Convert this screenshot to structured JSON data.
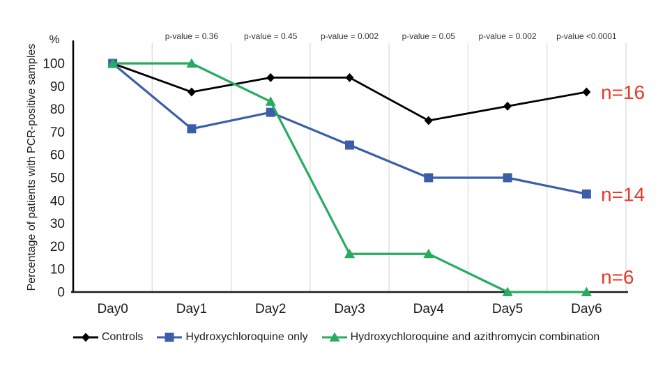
{
  "chart_data": {
    "type": "line",
    "title": "",
    "ylabel": "Percentage of patients with PCR-positive samples",
    "y_unit_label": "%",
    "xlabel": "",
    "categories": [
      "Day0",
      "Day1",
      "Day2",
      "Day3",
      "Day4",
      "Day5",
      "Day6"
    ],
    "ylim": [
      0,
      100
    ],
    "yticks": [
      0,
      10,
      20,
      30,
      40,
      50,
      60,
      70,
      80,
      90,
      100
    ],
    "grid": "vertical-between-categories",
    "legend_position": "bottom",
    "p_value_days": [
      "Day1",
      "Day2",
      "Day3",
      "Day4",
      "Day5",
      "Day6"
    ],
    "p_value_labels": [
      "p-value = 0.36",
      "p-value = 0.45",
      "p-value = 0.002",
      "p-value = 0.05",
      "p-value = 0.002",
      "p-value <0.0001"
    ],
    "series": [
      {
        "name": "Controls",
        "marker": "diamond",
        "color": "#000000",
        "values": [
          100,
          87.5,
          93.8,
          93.8,
          75,
          81.3,
          87.5
        ],
        "n_label": "n=16"
      },
      {
        "name": "Hydroxychloroquine only",
        "marker": "square",
        "color": "#3b5ea9",
        "values": [
          100,
          71.4,
          78.6,
          64.3,
          50,
          50,
          42.9
        ],
        "n_label": "n=14"
      },
      {
        "name": "Hydroxychloroquine and azithromycin combination",
        "marker": "triangle",
        "color": "#27ab60",
        "values": [
          100,
          100,
          83.3,
          16.7,
          16.7,
          0,
          0
        ],
        "n_label": "n=6"
      }
    ],
    "colors": {
      "grid": "#d9d9d9",
      "axis": "#1a1a1a",
      "tick_text": "#1a1a1a",
      "p_value_text": "#333333",
      "n_label": "#e8392a"
    }
  }
}
